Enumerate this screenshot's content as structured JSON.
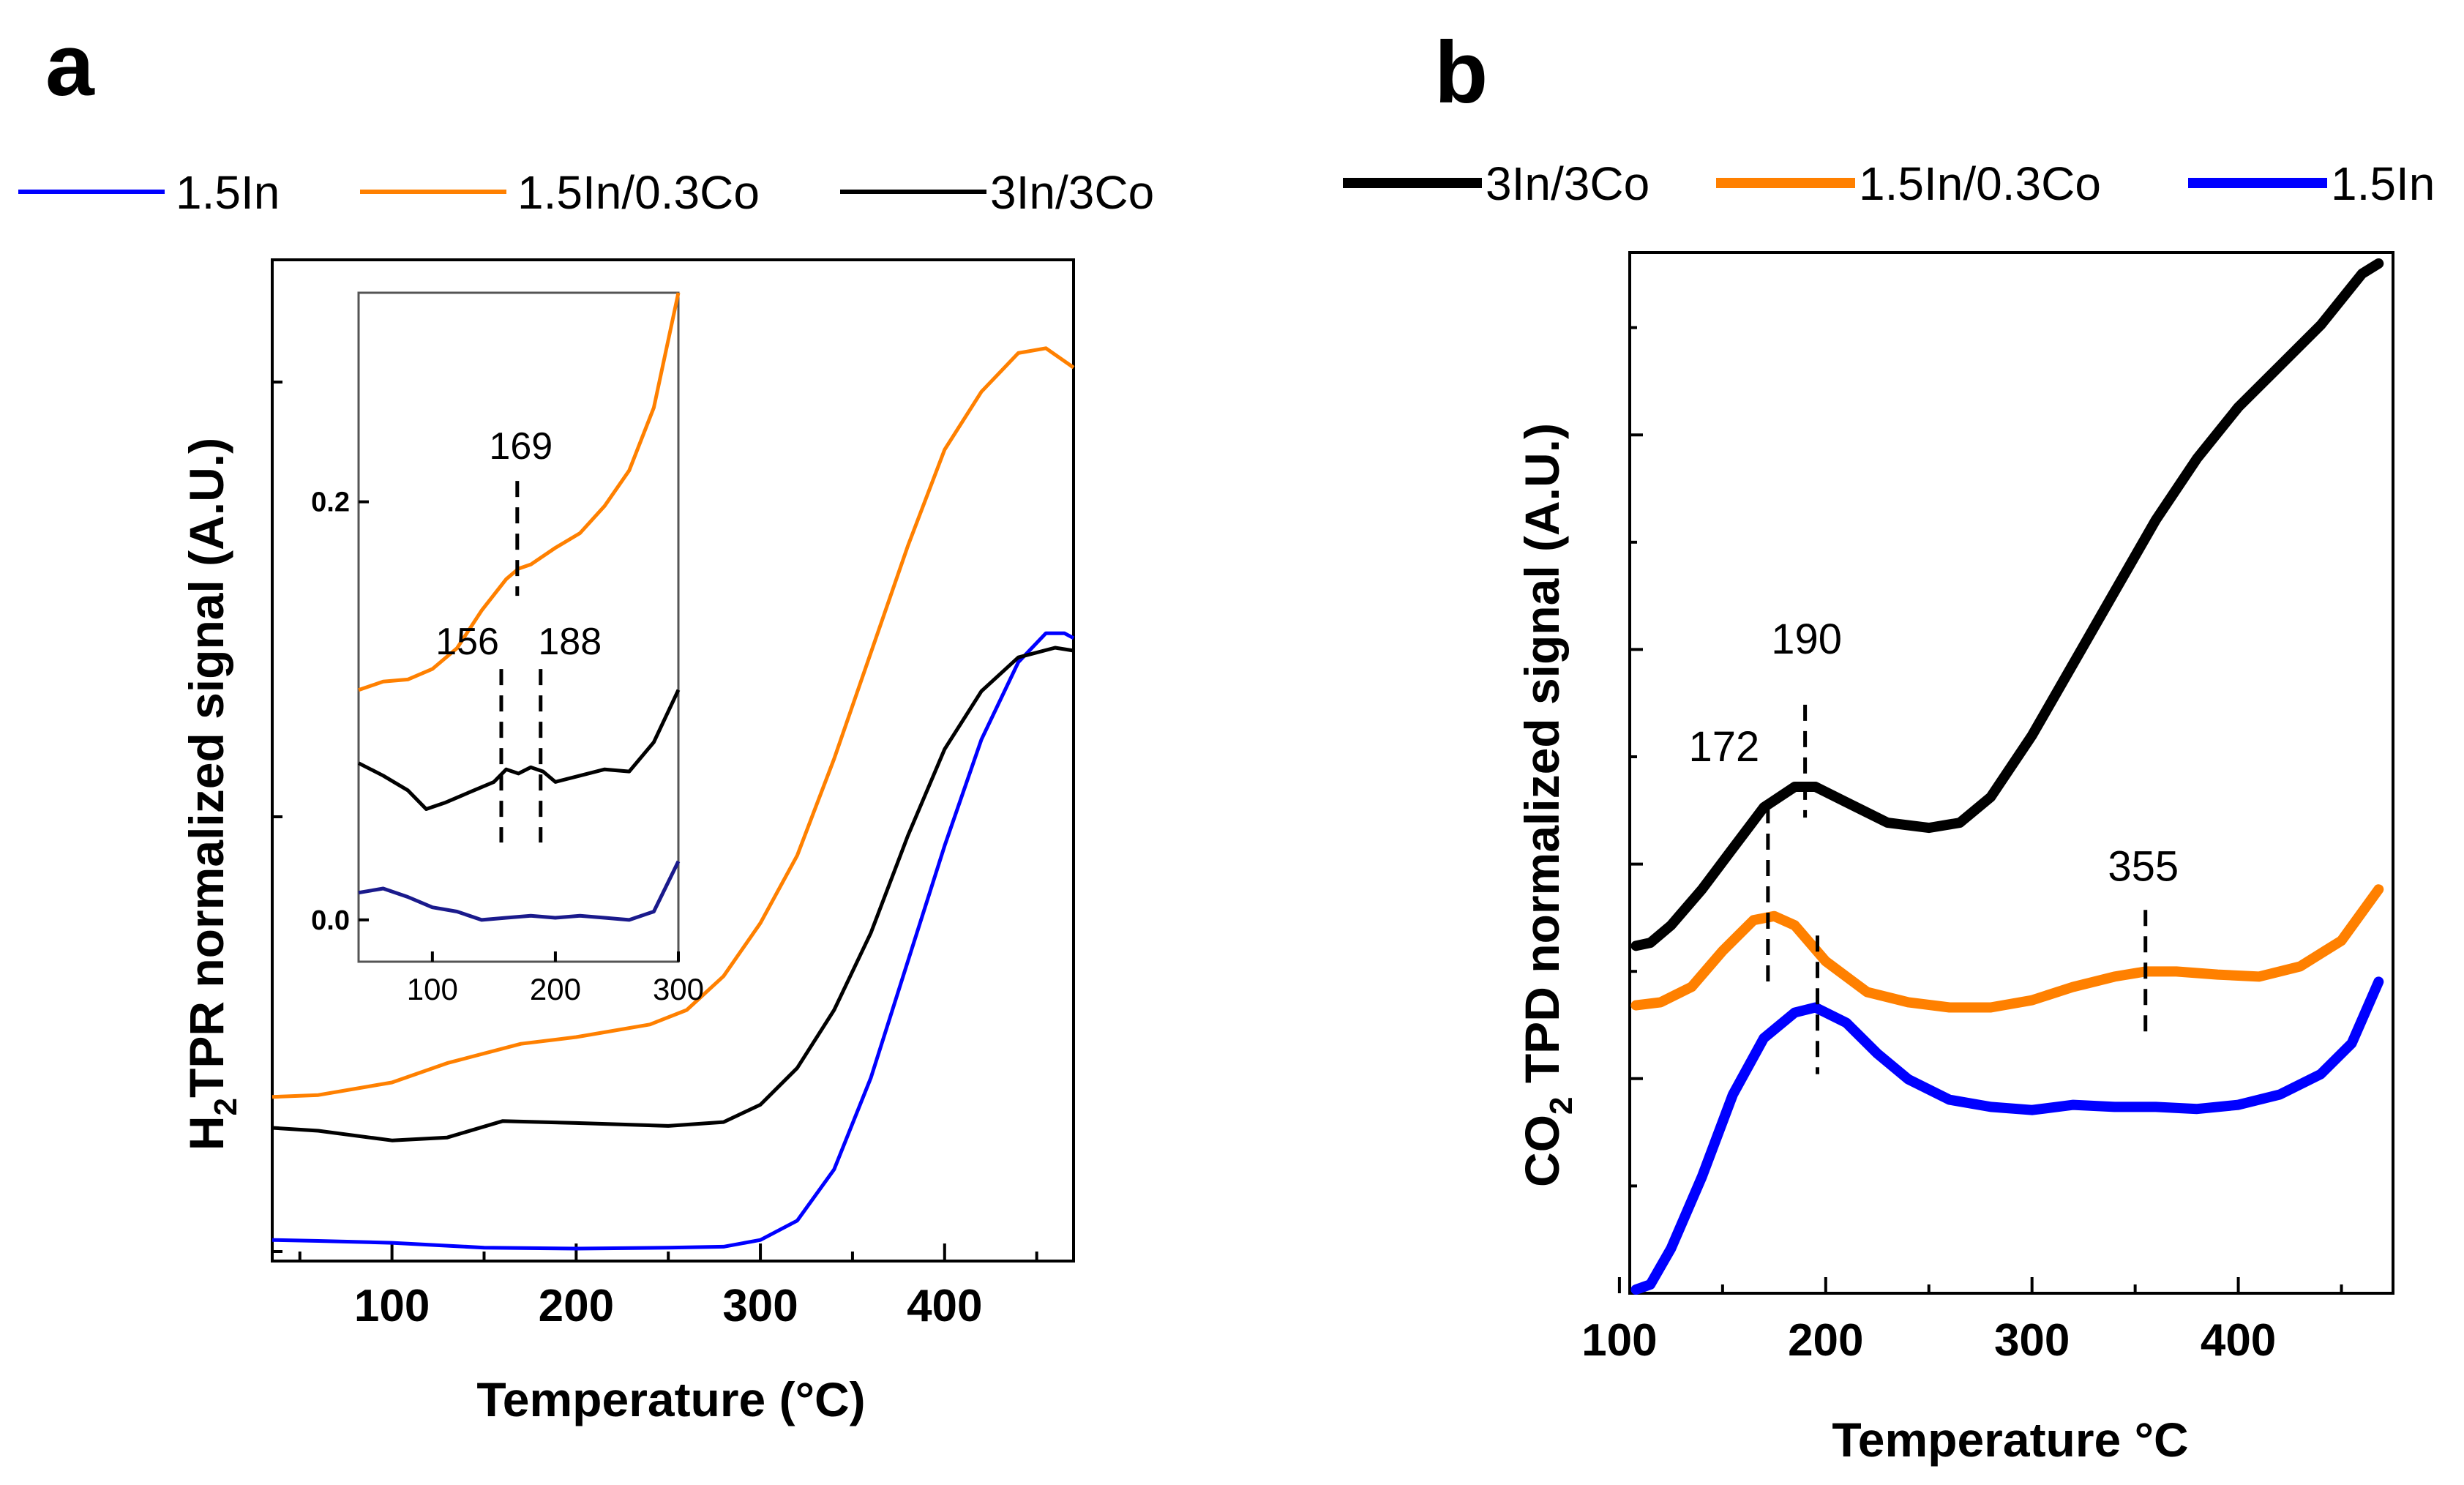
{
  "figure": {
    "panel_a_label": "a",
    "panel_b_label": "b"
  },
  "colors": {
    "1.5In": "#0000ff",
    "1.5In/0.3Co": "#ff8000",
    "3In/3Co": "#000000"
  },
  "chart_data": [
    {
      "type": "line",
      "panel": "a",
      "title": "",
      "legend": [
        "1.5In",
        "1.5In/0.3Co",
        "3In/3Co"
      ],
      "xlabel": "Temperature (°C)",
      "ylabel": "H2TPR normalized signal (A.U.)",
      "ylabel_main": "H",
      "ylabel_sub": "2",
      "ylabel_rest": "TPR normalized signal (A.U.)",
      "xlim": [
        35,
        470
      ],
      "ylim": [
        0,
        1
      ],
      "xticks": [
        100,
        200,
        300,
        400
      ],
      "grid": false,
      "legend_placement": "top",
      "series": [
        {
          "name": "1.5In",
          "color": "#0000ff",
          "x": [
            35,
            60,
            100,
            150,
            200,
            250,
            280,
            300,
            320,
            340,
            360,
            380,
            400,
            420,
            440,
            455,
            465,
            470
          ],
          "y": [
            0.012,
            0.011,
            0.009,
            0.004,
            0.003,
            0.004,
            0.005,
            0.012,
            0.032,
            0.085,
            0.18,
            0.3,
            0.42,
            0.53,
            0.61,
            0.64,
            0.64,
            0.635
          ]
        },
        {
          "name": "1.5In/0.3Co",
          "color": "#ff8000",
          "x": [
            35,
            60,
            100,
            130,
            170,
            200,
            240,
            260,
            280,
            300,
            320,
            340,
            360,
            380,
            400,
            420,
            440,
            455,
            470
          ],
          "y": [
            0.16,
            0.162,
            0.175,
            0.195,
            0.215,
            0.222,
            0.235,
            0.25,
            0.285,
            0.34,
            0.41,
            0.51,
            0.62,
            0.73,
            0.83,
            0.89,
            0.93,
            0.935,
            0.915
          ]
        },
        {
          "name": "3In/3Co",
          "color": "#000000",
          "x": [
            35,
            60,
            100,
            130,
            160,
            200,
            250,
            280,
            300,
            320,
            340,
            360,
            380,
            400,
            420,
            440,
            460,
            470
          ],
          "y": [
            0.128,
            0.125,
            0.115,
            0.118,
            0.135,
            0.133,
            0.13,
            0.134,
            0.152,
            0.19,
            0.25,
            0.33,
            0.43,
            0.52,
            0.58,
            0.615,
            0.625,
            0.622
          ]
        }
      ],
      "inset": {
        "xlim": [
          40,
          300
        ],
        "ylim": [
          -0.02,
          0.3
        ],
        "xticks": [
          100,
          200,
          300
        ],
        "yticks": [
          "0.0",
          "0.2"
        ],
        "series": [
          {
            "name": "1.5In/0.3Co",
            "x": [
              40,
              60,
              80,
              100,
              120,
              140,
              160,
              170,
              180,
              200,
              220,
              240,
              260,
              280,
              300
            ],
            "y": [
              0.11,
              0.114,
              0.115,
              0.12,
              0.13,
              0.148,
              0.163,
              0.168,
              0.17,
              0.178,
              0.185,
              0.198,
              0.215,
              0.245,
              0.3
            ]
          },
          {
            "name": "3In/3Co",
            "x": [
              40,
              60,
              80,
              95,
              110,
              130,
              150,
              160,
              170,
              180,
              190,
              200,
              220,
              240,
              260,
              280,
              300
            ],
            "y": [
              0.075,
              0.069,
              0.062,
              0.053,
              0.056,
              0.061,
              0.066,
              0.072,
              0.07,
              0.073,
              0.071,
              0.066,
              0.069,
              0.072,
              0.071,
              0.085,
              0.11
            ]
          },
          {
            "name": "1.5In",
            "x": [
              40,
              60,
              80,
              100,
              120,
              140,
              160,
              180,
              200,
              220,
              240,
              260,
              280,
              300
            ],
            "y": [
              0.013,
              0.015,
              0.011,
              0.006,
              0.004,
              0.0,
              0.001,
              0.002,
              0.001,
              0.002,
              0.001,
              0.0,
              0.004,
              0.028
            ]
          }
        ],
        "annotations": [
          {
            "label": "169",
            "x": 169
          },
          {
            "label": "156",
            "x": 156
          },
          {
            "label": "188",
            "x": 188
          }
        ]
      }
    },
    {
      "type": "line",
      "panel": "b",
      "title": "",
      "legend": [
        "3In/3Co",
        "1.5In/0.3Co",
        "1.5In"
      ],
      "xlabel": "Temperature °C",
      "ylabel": "CO2 TPD normalized signal (A.U.)",
      "ylabel_main": "CO",
      "ylabel_sub": "2",
      "ylabel_rest": " TPD normalized signal (A.U.)",
      "xlim": [
        105,
        475
      ],
      "ylim": [
        0,
        1
      ],
      "xticks": [
        100,
        200,
        300,
        400
      ],
      "grid": false,
      "legend_placement": "top",
      "series": [
        {
          "name": "3In/3Co",
          "color": "#000000",
          "x": [
            108,
            115,
            125,
            140,
            155,
            170,
            185,
            195,
            210,
            230,
            250,
            265,
            280,
            300,
            320,
            340,
            360,
            380,
            400,
            420,
            440,
            460,
            468
          ],
          "y": [
            0.335,
            0.338,
            0.355,
            0.39,
            0.43,
            0.47,
            0.49,
            0.49,
            0.475,
            0.455,
            0.45,
            0.455,
            0.48,
            0.54,
            0.61,
            0.68,
            0.75,
            0.81,
            0.86,
            0.9,
            0.94,
            0.99,
            1.0
          ]
        },
        {
          "name": "1.5In/0.3Co",
          "color": "#ff8000",
          "x": [
            108,
            120,
            135,
            150,
            165,
            175,
            185,
            200,
            220,
            240,
            260,
            280,
            300,
            320,
            340,
            355,
            370,
            390,
            410,
            430,
            450,
            468
          ],
          "y": [
            0.277,
            0.28,
            0.295,
            0.33,
            0.36,
            0.364,
            0.355,
            0.32,
            0.29,
            0.28,
            0.275,
            0.275,
            0.282,
            0.295,
            0.305,
            0.31,
            0.31,
            0.307,
            0.305,
            0.315,
            0.34,
            0.39
          ]
        },
        {
          "name": "1.5In",
          "color": "#0000ff",
          "x": [
            108,
            115,
            125,
            140,
            155,
            170,
            185,
            195,
            210,
            225,
            240,
            260,
            280,
            300,
            320,
            340,
            360,
            380,
            400,
            420,
            440,
            455,
            468
          ],
          "y": [
            0.0,
            0.005,
            0.04,
            0.11,
            0.19,
            0.245,
            0.27,
            0.275,
            0.26,
            0.23,
            0.205,
            0.185,
            0.178,
            0.175,
            0.18,
            0.178,
            0.178,
            0.176,
            0.18,
            0.19,
            0.21,
            0.24,
            0.3
          ]
        }
      ],
      "annotations": [
        {
          "label": "190",
          "x": 190
        },
        {
          "label": "172",
          "x": 172
        },
        {
          "label": "355",
          "x": 355
        }
      ]
    }
  ]
}
